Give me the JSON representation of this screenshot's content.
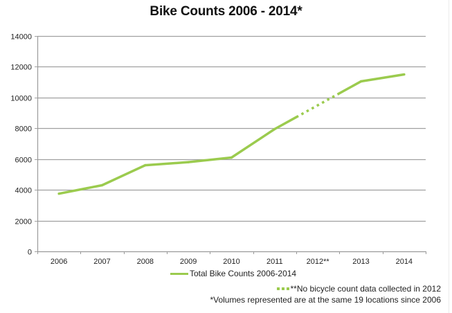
{
  "chart_data": {
    "type": "line",
    "title": "Bike Counts 2006 - 2014*",
    "xlabel": "",
    "ylabel": "",
    "categories": [
      "2006",
      "2007",
      "2008",
      "2009",
      "2010",
      "2011",
      "2012**",
      "2013",
      "2014"
    ],
    "series": [
      {
        "name": "Total Bike Counts 2006-2014",
        "values": [
          3750,
          4300,
          5600,
          5800,
          6100,
          7950,
          null,
          11050,
          11500
        ],
        "color": "#9BCB4E",
        "missing_segment_style": "dotted"
      }
    ],
    "ylim": [
      0,
      14000
    ],
    "yticks": [
      "0",
      "2000",
      "4000",
      "6000",
      "8000",
      "10000",
      "12000",
      "14000"
    ],
    "grid": true,
    "legend_position": "bottom-center",
    "annotations": [
      "**No bicycle count data collected in 2012",
      "*Volumes represented are at the same 19 locations since 2006"
    ],
    "gridline_color": "#A0A0A0"
  }
}
